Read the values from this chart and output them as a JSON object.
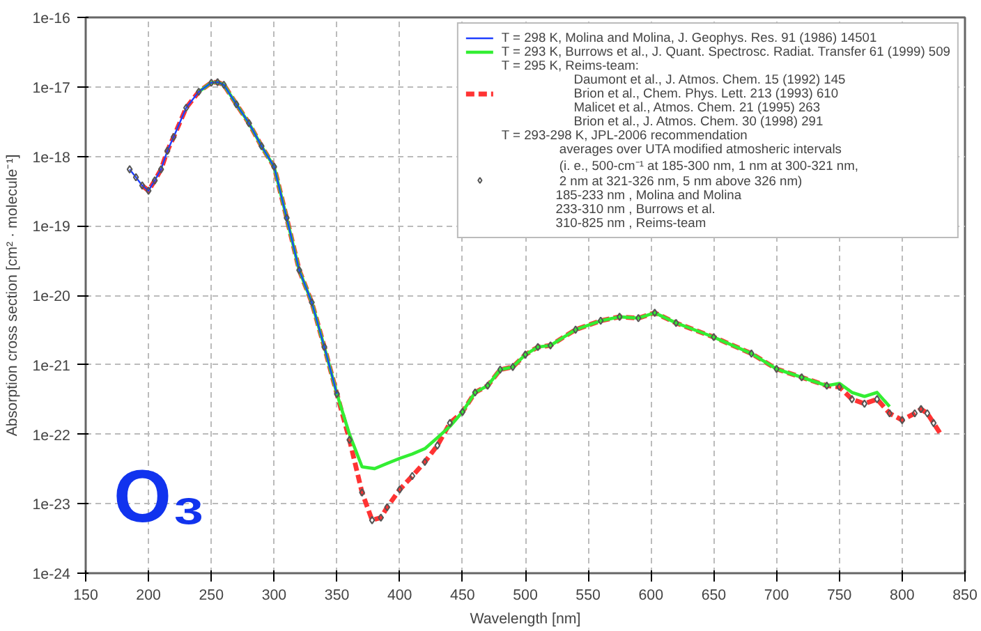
{
  "chart_data": {
    "type": "line",
    "xlabel": "Wavelength [nm]",
    "ylabel": "Absorption cross section [cm² · molecule⁻¹]",
    "log": "y",
    "grid": true,
    "legend": "top right",
    "xlim": [
      150,
      850
    ],
    "xticks": [
      150,
      200,
      250,
      300,
      350,
      400,
      450,
      500,
      550,
      600,
      650,
      700,
      750,
      800,
      850
    ],
    "ylim": [
      1e-24,
      1e-16
    ],
    "yticks": [
      {
        "value": 1e-24,
        "label": "1e-24"
      },
      {
        "value": 1e-23,
        "label": "1e-23"
      },
      {
        "value": 1e-22,
        "label": "1e-22"
      },
      {
        "value": 1e-21,
        "label": "1e-21"
      },
      {
        "value": 1e-20,
        "label": "1e-20"
      },
      {
        "value": 1e-19,
        "label": "1e-19"
      },
      {
        "value": 1e-18,
        "label": "1e-18"
      },
      {
        "value": 1e-17,
        "label": "1e-17"
      },
      {
        "value": 1e-16,
        "label": "1e-16"
      }
    ],
    "annotations": [
      "O₃"
    ],
    "series": [
      {
        "name": "T = 298 K, Molina and Molina, J. Geophys. Res. 91 (1986) 14501",
        "color": "#1f3fff",
        "line_style": "solid",
        "x": [
          185,
          190,
          195,
          200,
          205,
          210,
          215,
          220,
          230,
          240,
          250,
          255,
          260,
          270,
          280,
          290,
          300,
          310,
          320,
          330,
          340,
          350
        ],
        "values": [
          6.5e-19,
          5e-19,
          3.8e-19,
          3.2e-19,
          4.5e-19,
          6.5e-19,
          1.2e-18,
          1.9e-18,
          5e-18,
          8.5e-18,
          1.15e-17,
          1.17e-17,
          1.07e-17,
          5.6e-18,
          3e-18,
          1.4e-18,
          7.1e-19,
          1.3e-19,
          2.3e-20,
          7.9e-21,
          1.8e-21,
          3.8e-22
        ]
      },
      {
        "name": "T = 293 K, Burrows et al., J. Quant. Spectrosc. Radiat. Transfer 61 (1999) 509",
        "color": "#33ee33",
        "line_style": "solid",
        "x": [
          240,
          250,
          255,
          260,
          270,
          280,
          290,
          300,
          310,
          320,
          330,
          340,
          350,
          360,
          370,
          380,
          390,
          400,
          410,
          420,
          430,
          440,
          450,
          460,
          470,
          480,
          490,
          500,
          510,
          520,
          540,
          560,
          575,
          590,
          603,
          620,
          650,
          680,
          700,
          720,
          740,
          750,
          760,
          770,
          780,
          790
        ],
        "values": [
          8.5e-18,
          1.15e-17,
          1.17e-17,
          1.07e-17,
          5.6e-18,
          3e-18,
          1.4e-18,
          7.1e-19,
          1.3e-19,
          2.3e-20,
          7.9e-21,
          1.8e-21,
          3.8e-22,
          1e-22,
          3.4e-23,
          3.2e-23,
          3.8e-23,
          4.5e-23,
          5.2e-23,
          6.2e-23,
          8.9e-23,
          1.3e-22,
          2.1e-22,
          4e-22,
          5e-22,
          8.5e-22,
          9.3e-22,
          1.4e-21,
          1.8e-21,
          1.9e-21,
          3.2e-21,
          4.3e-21,
          4.9e-21,
          4.7e-21,
          5.6e-21,
          4e-21,
          2.5e-21,
          1.45e-21,
          8.7e-22,
          6.6e-22,
          5e-22,
          5.4e-22,
          4e-22,
          3.5e-22,
          4e-22,
          2.5e-22
        ]
      },
      {
        "name": "T = 295 K, Reims-team:\n                    Daumont et al., J. Atmos. Chem. 15 (1992) 145\n                    Brion et al., Chem. Phys. Lett. 213 (1993) 610\n                    Malicet et al., Atmos. Chem. 21 (1995) 263\n                    Brion et al., J. Atmos. Chem. 30 (1998) 291",
        "color": "#ff3333",
        "line_style": "dashed",
        "x": [
          195,
          200,
          205,
          210,
          215,
          220,
          230,
          240,
          250,
          255,
          260,
          270,
          280,
          290,
          300,
          310,
          320,
          330,
          340,
          350,
          360,
          370,
          378,
          385,
          390,
          400,
          410,
          420,
          430,
          440,
          450,
          460,
          470,
          480,
          490,
          500,
          510,
          520,
          540,
          560,
          575,
          590,
          603,
          620,
          650,
          680,
          700,
          720,
          740,
          750,
          760,
          770,
          780,
          790,
          800,
          810,
          815,
          820,
          825,
          830
        ],
        "values": [
          3.8e-19,
          3.2e-19,
          4.5e-19,
          6.5e-19,
          1.2e-18,
          1.9e-18,
          5e-18,
          8.5e-18,
          1.15e-17,
          1.17e-17,
          1.07e-17,
          5.6e-18,
          3e-18,
          1.4e-18,
          7.1e-19,
          1.3e-19,
          2.3e-20,
          7.9e-21,
          1.8e-21,
          3.8e-22,
          8.3e-23,
          1.45e-23,
          5.8e-24,
          6.3e-24,
          8.9e-24,
          1.6e-23,
          2.5e-23,
          4e-23,
          6.9e-23,
          1.45e-22,
          2.1e-22,
          4e-22,
          5e-22,
          8.5e-22,
          9.3e-22,
          1.4e-21,
          1.8e-21,
          1.9e-21,
          3.2e-21,
          4.3e-21,
          4.9e-21,
          4.7e-21,
          5.6e-21,
          4e-21,
          2.5e-21,
          1.45e-21,
          8.7e-22,
          6.6e-22,
          5e-22,
          4.8e-22,
          3.2e-22,
          2.75e-22,
          3.2e-22,
          2e-22,
          1.6e-22,
          2e-22,
          2.3e-22,
          2e-22,
          1.45e-22,
          1.05e-22
        ]
      },
      {
        "name": "T = 293-298 K, JPL-2006 recommendation\n                averages over UTA modified atmosheric intervals\n                (i. e., 500-cm⁻¹ at 185-300 nm, 1 nm at 300-321 nm,\n                2 nm at 321-326 nm, 5 nm above 326 nm)\n               185-233 nm , Molina and Molina\n               233-310 nm , Burrows et al.\n               310-825 nm , Reims-team",
        "color": "#555555",
        "type": "scatter",
        "marker": "diamond",
        "x": [
          185,
          190,
          195,
          200,
          205,
          210,
          215,
          220,
          230,
          240,
          250,
          255,
          260,
          270,
          280,
          290,
          300,
          310,
          320,
          330,
          340,
          350,
          360,
          370,
          378,
          385,
          390,
          400,
          410,
          420,
          430,
          440,
          450,
          460,
          470,
          480,
          490,
          500,
          510,
          520,
          540,
          560,
          575,
          590,
          603,
          620,
          650,
          680,
          700,
          720,
          740,
          750,
          760,
          770,
          780,
          790,
          800,
          810,
          815,
          820,
          825
        ],
        "values": [
          6.5e-19,
          5e-19,
          3.8e-19,
          3.2e-19,
          4.5e-19,
          6.5e-19,
          1.2e-18,
          1.9e-18,
          5e-18,
          8.5e-18,
          1.15e-17,
          1.17e-17,
          1.07e-17,
          5.6e-18,
          3e-18,
          1.4e-18,
          7.1e-19,
          1.3e-19,
          2.3e-20,
          7.9e-21,
          1.8e-21,
          3.8e-22,
          8.3e-23,
          1.45e-23,
          5.8e-24,
          6.3e-24,
          8.9e-24,
          1.6e-23,
          2.5e-23,
          4e-23,
          6.9e-23,
          1.45e-22,
          2.1e-22,
          4e-22,
          5e-22,
          8.5e-22,
          9.3e-22,
          1.4e-21,
          1.8e-21,
          1.9e-21,
          3.2e-21,
          4.3e-21,
          4.9e-21,
          4.7e-21,
          5.6e-21,
          4e-21,
          2.5e-21,
          1.45e-21,
          8.7e-22,
          6.6e-22,
          5e-22,
          4.8e-22,
          3.2e-22,
          2.75e-22,
          3.2e-22,
          2e-22,
          1.6e-22,
          2e-22,
          2.3e-22,
          2e-22,
          1.45e-22
        ]
      }
    ]
  }
}
